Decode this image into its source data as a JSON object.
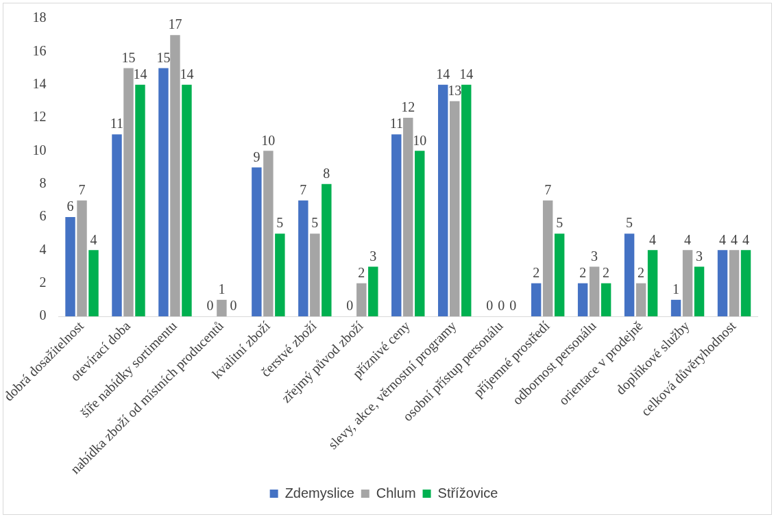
{
  "chart_data": {
    "type": "bar",
    "categories": [
      "dobrá dosažitelnost",
      "otevírací doba",
      "šíře nabídky sortimentu",
      "nabídka zboží od místních producentů",
      "kvalitní zboží",
      "čerstvé zboží",
      "zřejmý původ zboží",
      "příznivé ceny",
      "slevy, akce, věrnostní programy",
      "osobní přístup personálu",
      "příjemné prostředí",
      "odbornost personálu",
      "orientace v prodejně",
      "doplňkové služby",
      "celková důvěryhodnost"
    ],
    "series": [
      {
        "name": "Zdemyslice",
        "color": "#4472c4",
        "values": [
          6,
          11,
          15,
          0,
          9,
          7,
          0,
          11,
          14,
          0,
          2,
          2,
          5,
          1,
          4
        ]
      },
      {
        "name": "Chlum",
        "color": "#a5a5a5",
        "values": [
          7,
          15,
          17,
          1,
          10,
          5,
          2,
          12,
          13,
          0,
          7,
          3,
          2,
          4,
          4
        ]
      },
      {
        "name": "Střížovice",
        "color": "#00b050",
        "values": [
          4,
          14,
          14,
          0,
          5,
          8,
          3,
          10,
          14,
          0,
          5,
          2,
          4,
          3,
          4
        ]
      }
    ],
    "ylim": [
      0,
      18
    ],
    "yticks": [
      0,
      2,
      4,
      6,
      8,
      10,
      12,
      14,
      16,
      18
    ],
    "grid": false,
    "legend": "bottom",
    "data_labels": true
  }
}
